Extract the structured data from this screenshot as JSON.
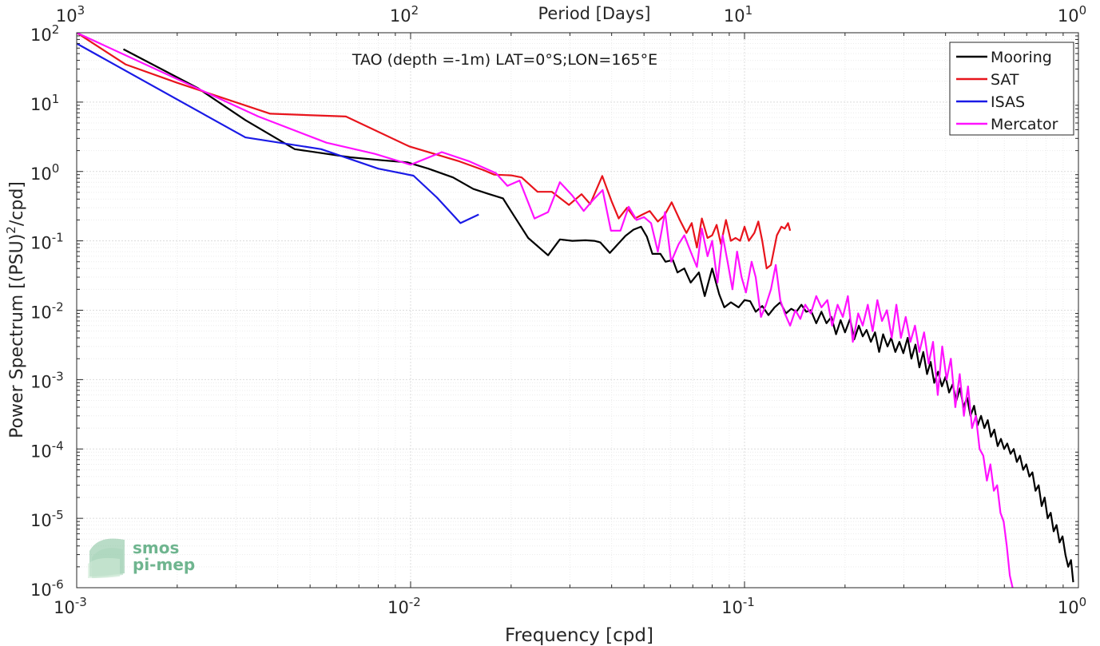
{
  "chart_data": {
    "type": "line",
    "title": "TAO (depth =-1m) LAT=0°S;LON=165°E",
    "xlabel": "Frequency [cpd]",
    "ylabel": "Power Spectrum [(PSU)",
    "ylabel_exp": "2",
    "ylabel_tail": "/cpd]",
    "top_xlabel": "Period [Days]",
    "xscale": "log",
    "yscale": "log",
    "xlim": [
      0.001,
      1
    ],
    "ylim": [
      1e-06,
      100
    ],
    "grid": true,
    "legend_position": "top-right",
    "x_ticks": [
      {
        "value": 0.001,
        "base": "10",
        "exp": "-3"
      },
      {
        "value": 0.01,
        "base": "10",
        "exp": "-2"
      },
      {
        "value": 0.1,
        "base": "10",
        "exp": "-1"
      },
      {
        "value": 1,
        "base": "10",
        "exp": "0"
      }
    ],
    "y_ticks": [
      {
        "value": 100,
        "base": "10",
        "exp": "2"
      },
      {
        "value": 10,
        "base": "10",
        "exp": "1"
      },
      {
        "value": 1,
        "base": "10",
        "exp": "0"
      },
      {
        "value": 0.1,
        "base": "10",
        "exp": "-1"
      },
      {
        "value": 0.01,
        "base": "10",
        "exp": "-2"
      },
      {
        "value": 0.001,
        "base": "10",
        "exp": "-3"
      },
      {
        "value": 0.0001,
        "base": "10",
        "exp": "-4"
      },
      {
        "value": 1e-05,
        "base": "10",
        "exp": "-5"
      },
      {
        "value": 1e-06,
        "base": "10",
        "exp": "-6"
      }
    ],
    "top_ticks": [
      {
        "period": 1000,
        "base": "10",
        "exp": "3"
      },
      {
        "period": 100,
        "base": "10",
        "exp": "2"
      },
      {
        "period": 10,
        "base": "10",
        "exp": "1"
      },
      {
        "period": 1,
        "base": "10",
        "exp": "0"
      }
    ],
    "series": [
      {
        "name": "Mooring",
        "color": "#000000",
        "points": [
          [
            0.00138,
            58
          ],
          [
            0.0023,
            16
          ],
          [
            0.0032,
            5.5
          ],
          [
            0.0045,
            2.1
          ],
          [
            0.0066,
            1.6
          ],
          [
            0.0082,
            1.45
          ],
          [
            0.0098,
            1.35
          ],
          [
            0.0113,
            1.1
          ],
          [
            0.0134,
            0.82
          ],
          [
            0.0154,
            0.56
          ],
          [
            0.017,
            0.48
          ],
          [
            0.0189,
            0.41
          ],
          [
            0.0204,
            0.23
          ],
          [
            0.0225,
            0.11
          ],
          [
            0.0258,
            0.062
          ],
          [
            0.028,
            0.105
          ],
          [
            0.0305,
            0.1
          ],
          [
            0.0334,
            0.102
          ],
          [
            0.0355,
            0.1
          ],
          [
            0.037,
            0.095
          ],
          [
            0.0395,
            0.067
          ],
          [
            0.044,
            0.118
          ],
          [
            0.0465,
            0.145
          ],
          [
            0.049,
            0.16
          ],
          [
            0.051,
            0.115
          ],
          [
            0.053,
            0.065
          ],
          [
            0.056,
            0.065
          ],
          [
            0.058,
            0.05
          ],
          [
            0.061,
            0.053
          ],
          [
            0.063,
            0.035
          ],
          [
            0.066,
            0.04
          ],
          [
            0.069,
            0.025
          ],
          [
            0.073,
            0.035
          ],
          [
            0.076,
            0.016
          ],
          [
            0.08,
            0.04
          ],
          [
            0.084,
            0.017
          ],
          [
            0.087,
            0.011
          ],
          [
            0.091,
            0.013
          ],
          [
            0.096,
            0.011
          ],
          [
            0.1,
            0.014
          ],
          [
            0.104,
            0.0135
          ],
          [
            0.108,
            0.0095
          ],
          [
            0.113,
            0.0115
          ],
          [
            0.118,
            0.0085
          ],
          [
            0.123,
            0.011
          ],
          [
            0.128,
            0.013
          ],
          [
            0.133,
            0.009
          ],
          [
            0.138,
            0.0105
          ],
          [
            0.143,
            0.0095
          ],
          [
            0.148,
            0.012
          ],
          [
            0.153,
            0.0095
          ],
          [
            0.158,
            0.01
          ],
          [
            0.164,
            0.0065
          ],
          [
            0.17,
            0.0095
          ],
          [
            0.176,
            0.0065
          ],
          [
            0.182,
            0.008
          ],
          [
            0.188,
            0.0045
          ],
          [
            0.194,
            0.0072
          ],
          [
            0.2,
            0.0048
          ],
          [
            0.207,
            0.0075
          ],
          [
            0.213,
            0.0038
          ],
          [
            0.22,
            0.006
          ],
          [
            0.226,
            0.0042
          ],
          [
            0.232,
            0.0052
          ],
          [
            0.239,
            0.0035
          ],
          [
            0.246,
            0.0048
          ],
          [
            0.253,
            0.0025
          ],
          [
            0.26,
            0.0045
          ],
          [
            0.268,
            0.003
          ],
          [
            0.275,
            0.004
          ],
          [
            0.283,
            0.0025
          ],
          [
            0.291,
            0.0035
          ],
          [
            0.299,
            0.0024
          ],
          [
            0.308,
            0.004
          ],
          [
            0.316,
            0.002
          ],
          [
            0.325,
            0.0032
          ],
          [
            0.334,
            0.0015
          ],
          [
            0.343,
            0.0025
          ],
          [
            0.352,
            0.0012
          ],
          [
            0.361,
            0.0018
          ],
          [
            0.37,
            0.0009
          ],
          [
            0.38,
            0.0013
          ],
          [
            0.39,
            0.0008
          ],
          [
            0.4,
            0.0011
          ],
          [
            0.41,
            0.00065
          ],
          [
            0.42,
            0.00085
          ],
          [
            0.431,
            0.0005
          ],
          [
            0.442,
            0.00075
          ],
          [
            0.453,
            0.0004
          ],
          [
            0.464,
            0.00055
          ],
          [
            0.475,
            0.0003
          ],
          [
            0.487,
            0.00042
          ],
          [
            0.499,
            0.00022
          ],
          [
            0.511,
            0.0003
          ],
          [
            0.523,
            0.0002
          ],
          [
            0.535,
            0.00026
          ],
          [
            0.547,
            0.00015
          ],
          [
            0.56,
            0.00019
          ],
          [
            0.573,
            0.00011
          ],
          [
            0.586,
            0.00014
          ],
          [
            0.599,
            0.0001
          ],
          [
            0.612,
            0.00012
          ],
          [
            0.626,
            8.5e-05
          ],
          [
            0.64,
            0.0001
          ],
          [
            0.654,
            6.5e-05
          ],
          [
            0.668,
            8e-05
          ],
          [
            0.683,
            5e-05
          ],
          [
            0.698,
            6e-05
          ],
          [
            0.713,
            4e-05
          ],
          [
            0.728,
            4.6e-05
          ],
          [
            0.744,
            2.5e-05
          ],
          [
            0.76,
            3e-05
          ],
          [
            0.776,
            1.5e-05
          ],
          [
            0.792,
            2e-05
          ],
          [
            0.809,
            1e-05
          ],
          [
            0.826,
            1.2e-05
          ],
          [
            0.843,
            6.5e-06
          ],
          [
            0.86,
            8e-06
          ],
          [
            0.878,
            4.5e-06
          ],
          [
            0.896,
            5.5e-06
          ],
          [
            0.914,
            3e-06
          ],
          [
            0.932,
            2e-06
          ],
          [
            0.95,
            2.5e-06
          ],
          [
            0.965,
            1.2e-06
          ]
        ]
      },
      {
        "name": "SAT",
        "color": "#e8141c",
        "points": [
          [
            0.001,
            100
          ],
          [
            0.0014,
            35
          ],
          [
            0.002,
            19
          ],
          [
            0.0038,
            6.8
          ],
          [
            0.0064,
            6.2
          ],
          [
            0.0099,
            2.3
          ],
          [
            0.014,
            1.4
          ],
          [
            0.0165,
            1.05
          ],
          [
            0.0178,
            0.9
          ],
          [
            0.02,
            0.88
          ],
          [
            0.0215,
            0.82
          ],
          [
            0.024,
            0.51
          ],
          [
            0.0265,
            0.51
          ],
          [
            0.0298,
            0.33
          ],
          [
            0.0325,
            0.47
          ],
          [
            0.0345,
            0.34
          ],
          [
            0.0375,
            0.86
          ],
          [
            0.04,
            0.37
          ],
          [
            0.042,
            0.21
          ],
          [
            0.0445,
            0.3
          ],
          [
            0.047,
            0.21
          ],
          [
            0.0495,
            0.24
          ],
          [
            0.052,
            0.27
          ],
          [
            0.055,
            0.19
          ],
          [
            0.0575,
            0.23
          ],
          [
            0.0605,
            0.36
          ],
          [
            0.064,
            0.2
          ],
          [
            0.067,
            0.13
          ],
          [
            0.0695,
            0.18
          ],
          [
            0.072,
            0.08
          ],
          [
            0.0745,
            0.21
          ],
          [
            0.0775,
            0.11
          ],
          [
            0.08,
            0.12
          ],
          [
            0.0825,
            0.17
          ],
          [
            0.085,
            0.09
          ],
          [
            0.088,
            0.2
          ],
          [
            0.091,
            0.1
          ],
          [
            0.094,
            0.11
          ],
          [
            0.097,
            0.1
          ],
          [
            0.1,
            0.16
          ],
          [
            0.103,
            0.1
          ],
          [
            0.107,
            0.13
          ],
          [
            0.11,
            0.19
          ],
          [
            0.113,
            0.1
          ],
          [
            0.1165,
            0.04
          ],
          [
            0.12,
            0.045
          ],
          [
            0.125,
            0.12
          ],
          [
            0.129,
            0.16
          ],
          [
            0.132,
            0.15
          ],
          [
            0.135,
            0.18
          ],
          [
            0.137,
            0.14
          ]
        ]
      },
      {
        "name": "ISAS",
        "color": "#1a1ae6",
        "points": [
          [
            0.001,
            70
          ],
          [
            0.0032,
            3.1
          ],
          [
            0.0054,
            2.1
          ],
          [
            0.008,
            1.1
          ],
          [
            0.0102,
            0.87
          ],
          [
            0.012,
            0.42
          ],
          [
            0.0141,
            0.18
          ],
          [
            0.016,
            0.24
          ]
        ]
      },
      {
        "name": "Mercator",
        "color": "#ff12ff",
        "points": [
          [
            0.001,
            100
          ],
          [
            0.0035,
            6.2
          ],
          [
            0.0056,
            2.6
          ],
          [
            0.0078,
            1.8
          ],
          [
            0.01,
            1.25
          ],
          [
            0.0124,
            1.9
          ],
          [
            0.015,
            1.4
          ],
          [
            0.018,
            0.95
          ],
          [
            0.0195,
            0.62
          ],
          [
            0.0212,
            0.74
          ],
          [
            0.0235,
            0.21
          ],
          [
            0.0258,
            0.26
          ],
          [
            0.028,
            0.7
          ],
          [
            0.0305,
            0.45
          ],
          [
            0.033,
            0.27
          ],
          [
            0.0352,
            0.39
          ],
          [
            0.0376,
            0.54
          ],
          [
            0.0398,
            0.14
          ],
          [
            0.0425,
            0.14
          ],
          [
            0.045,
            0.31
          ],
          [
            0.0475,
            0.2
          ],
          [
            0.05,
            0.22
          ],
          [
            0.0525,
            0.18
          ],
          [
            0.055,
            0.07
          ],
          [
            0.0578,
            0.26
          ],
          [
            0.0603,
            0.05
          ],
          [
            0.0635,
            0.09
          ],
          [
            0.066,
            0.12
          ],
          [
            0.069,
            0.07
          ],
          [
            0.072,
            0.042
          ],
          [
            0.0745,
            0.15
          ],
          [
            0.0775,
            0.06
          ],
          [
            0.08,
            0.1
          ],
          [
            0.083,
            0.025
          ],
          [
            0.086,
            0.12
          ],
          [
            0.089,
            0.05
          ],
          [
            0.092,
            0.02
          ],
          [
            0.095,
            0.07
          ],
          [
            0.098,
            0.03
          ],
          [
            0.101,
            0.018
          ],
          [
            0.105,
            0.05
          ],
          [
            0.108,
            0.03
          ],
          [
            0.112,
            0.008
          ],
          [
            0.116,
            0.012
          ],
          [
            0.12,
            0.02
          ],
          [
            0.124,
            0.045
          ],
          [
            0.128,
            0.014
          ],
          [
            0.132,
            0.009
          ],
          [
            0.137,
            0.006
          ],
          [
            0.142,
            0.01
          ],
          [
            0.147,
            0.0075
          ],
          [
            0.152,
            0.012
          ],
          [
            0.158,
            0.009
          ],
          [
            0.164,
            0.016
          ],
          [
            0.17,
            0.011
          ],
          [
            0.177,
            0.014
          ],
          [
            0.183,
            0.006
          ],
          [
            0.19,
            0.012
          ],
          [
            0.197,
            0.008
          ],
          [
            0.204,
            0.016
          ],
          [
            0.211,
            0.0035
          ],
          [
            0.219,
            0.009
          ],
          [
            0.226,
            0.006
          ],
          [
            0.234,
            0.012
          ],
          [
            0.242,
            0.005
          ],
          [
            0.25,
            0.014
          ],
          [
            0.258,
            0.007
          ],
          [
            0.267,
            0.01
          ],
          [
            0.276,
            0.004
          ],
          [
            0.285,
            0.012
          ],
          [
            0.294,
            0.004
          ],
          [
            0.304,
            0.008
          ],
          [
            0.314,
            0.0035
          ],
          [
            0.324,
            0.006
          ],
          [
            0.334,
            0.0025
          ],
          [
            0.345,
            0.0048
          ],
          [
            0.356,
            0.0017
          ],
          [
            0.367,
            0.0035
          ],
          [
            0.379,
            0.0006
          ],
          [
            0.391,
            0.003
          ],
          [
            0.403,
            0.001
          ],
          [
            0.415,
            0.002
          ],
          [
            0.428,
            0.0004
          ],
          [
            0.441,
            0.0012
          ],
          [
            0.454,
            0.0003
          ],
          [
            0.467,
            0.0008
          ],
          [
            0.48,
            0.0002
          ],
          [
            0.493,
            0.0003
          ],
          [
            0.506,
            0.0001
          ],
          [
            0.519,
            8e-05
          ],
          [
            0.532,
            3.5e-05
          ],
          [
            0.545,
            6e-05
          ],
          [
            0.558,
            2.5e-05
          ],
          [
            0.571,
            3e-05
          ],
          [
            0.584,
            1.2e-05
          ],
          [
            0.597,
            9e-06
          ],
          [
            0.61,
            4e-06
          ],
          [
            0.623,
            1.5e-06
          ],
          [
            0.635,
            1e-06
          ]
        ]
      }
    ]
  },
  "watermark": {
    "line1": "smos",
    "line2": "pi-mep",
    "color": "#6fb58f"
  }
}
